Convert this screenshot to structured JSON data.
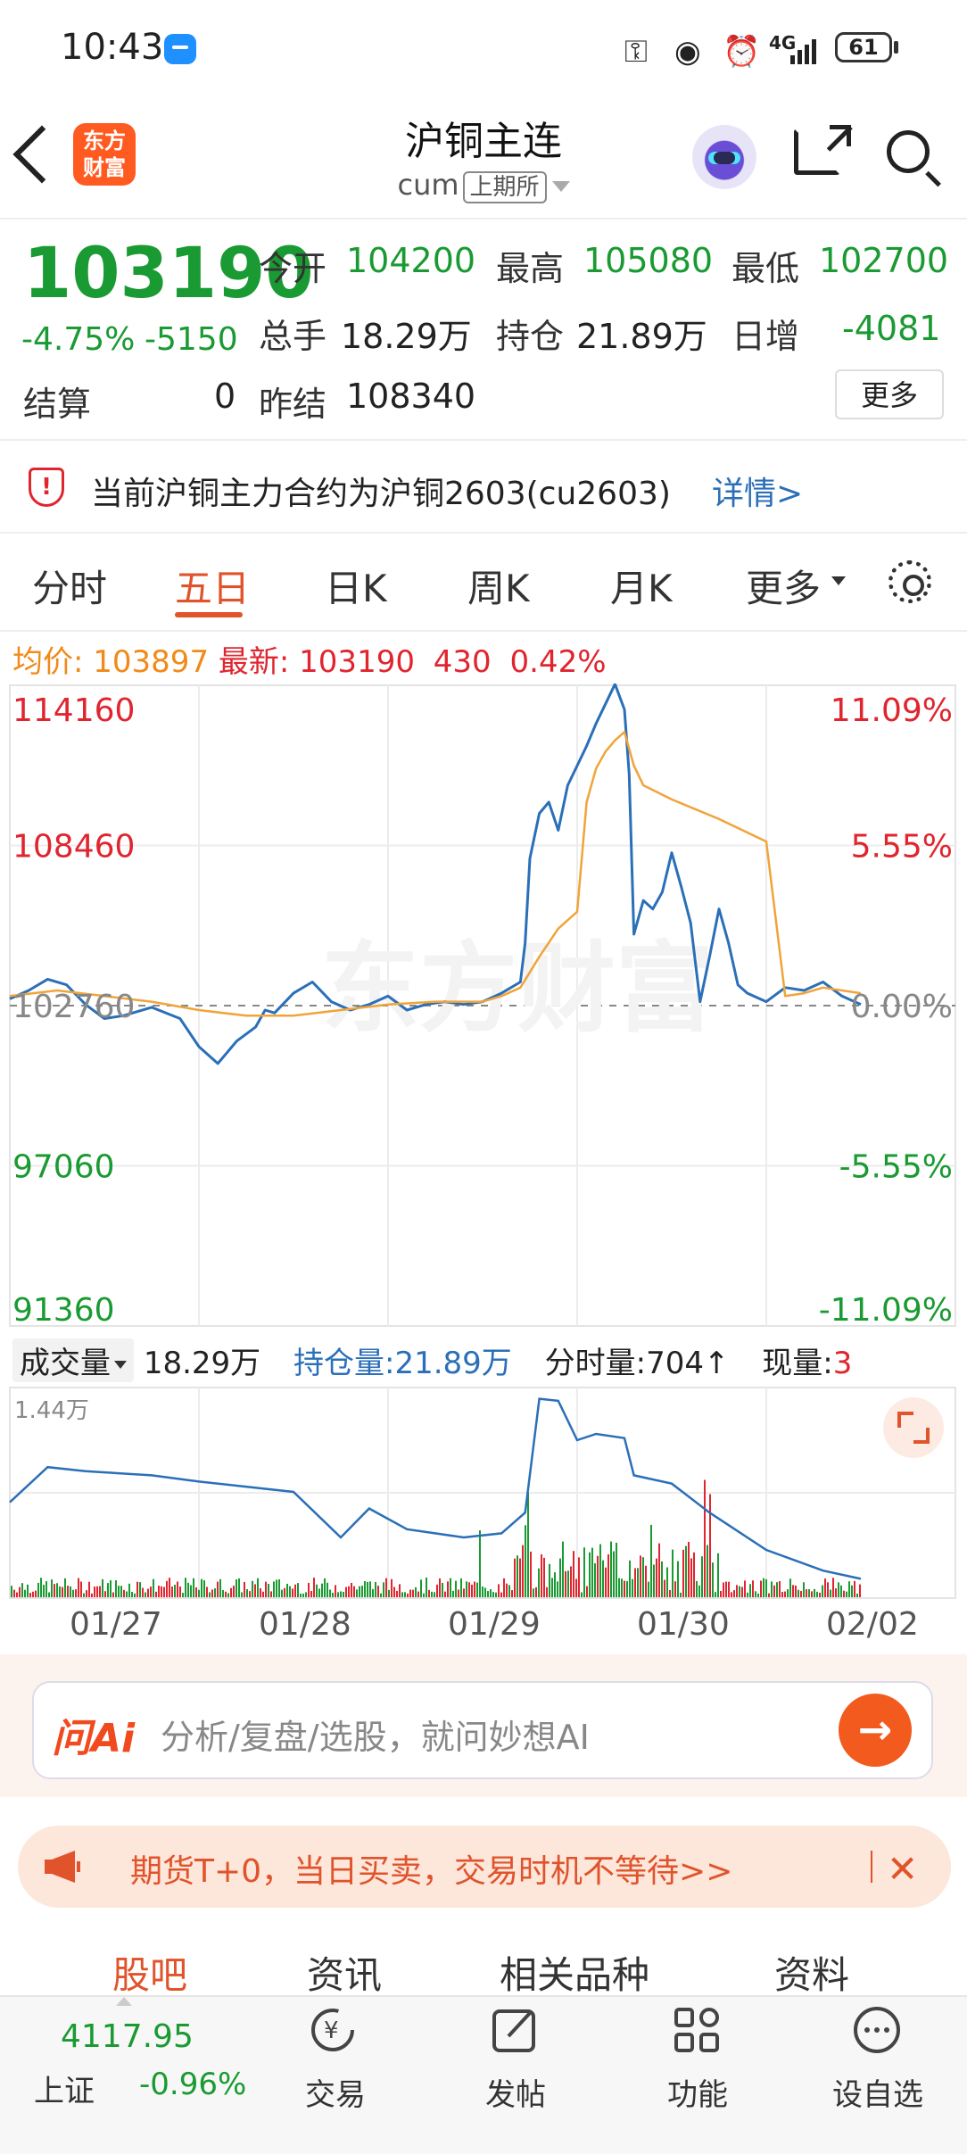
{
  "status_bar": {
    "time": "10:43",
    "signal_label": "4G",
    "battery": "61",
    "icons": [
      "message-icon",
      "key-icon",
      "eye-icon",
      "alarm-icon",
      "signal-icon",
      "battery-icon"
    ]
  },
  "header": {
    "brand": "东方财富",
    "title": "沪铜主连",
    "code": "cum",
    "exchange": "上期所"
  },
  "quote": {
    "last": "103190",
    "change_pct": "-4.75%",
    "change_abs": "-5150",
    "open_label": "今开",
    "open": "104200",
    "high_label": "最高",
    "high": "105080",
    "low_label": "最低",
    "low": "102700",
    "volume_label": "总手",
    "volume": "18.29万",
    "oi_label": "持仓",
    "oi": "21.89万",
    "daily_inc_label": "日增",
    "daily_inc": "-4081",
    "settle_label": "结算",
    "settle": "0",
    "prev_settle_label": "昨结",
    "prev_settle": "108340",
    "more_label": "更多"
  },
  "notice": {
    "text": "当前沪铜主力合约为沪铜2603(cu2603)",
    "link": "详情>"
  },
  "tabs": [
    "分时",
    "五日",
    "日K",
    "周K",
    "月K",
    "更多"
  ],
  "active_tab": 1,
  "info": {
    "avg_label": "均价:",
    "avg": "103897",
    "latest_label": "最新:",
    "latest": "103190",
    "latest_diff": "430",
    "latest_pct": "0.42%"
  },
  "chart_data": {
    "type": "line",
    "y_left_ticks": [
      "114160",
      "108460",
      "102760",
      "97060",
      "91360"
    ],
    "y_right_ticks": [
      "11.09%",
      "5.55%",
      "0.00%",
      "-5.55%",
      "-11.09%"
    ],
    "ylim": [
      91360,
      114160
    ],
    "baseline": 102760,
    "x_categories": [
      "01/27",
      "01/28",
      "01/29",
      "01/30",
      "02/02"
    ],
    "series": [
      {
        "color": "#2b6fb8",
        "x": [
          0,
          0.02,
          0.04,
          0.06,
          0.08,
          0.1,
          0.12,
          0.15,
          0.18,
          0.2,
          0.22,
          0.24,
          0.26,
          0.27,
          0.28,
          0.3,
          0.32,
          0.34,
          0.36,
          0.38,
          0.4,
          0.42,
          0.44,
          0.46,
          0.48,
          0.5,
          0.52,
          0.54,
          0.545,
          0.55,
          0.56,
          0.57,
          0.58,
          0.59,
          0.6,
          0.61,
          0.62,
          0.63,
          0.64,
          0.65,
          0.655,
          0.66,
          0.67,
          0.68,
          0.69,
          0.7,
          0.71,
          0.72,
          0.73,
          0.74,
          0.75,
          0.76,
          0.77,
          0.78,
          0.8,
          0.82,
          0.84,
          0.86,
          0.88,
          0.9
        ],
        "y": [
          103000,
          103300,
          103700,
          103500,
          102800,
          102300,
          102400,
          102700,
          102300,
          101300,
          100700,
          101500,
          102000,
          102600,
          102500,
          103200,
          103600,
          102900,
          102600,
          102800,
          103100,
          102600,
          102800,
          102900,
          102800,
          102900,
          103200,
          103600,
          105000,
          108000,
          109600,
          110000,
          109000,
          110600,
          111300,
          112000,
          112800,
          113500,
          114200,
          113300,
          111000,
          105300,
          106500,
          106200,
          106800,
          108200,
          107000,
          105700,
          102900,
          104500,
          106200,
          105000,
          103500,
          103200,
          102900,
          103400,
          103300,
          103600,
          103100,
          102800
        ]
      },
      {
        "color": "#f0a43a",
        "x": [
          0,
          0.05,
          0.1,
          0.15,
          0.2,
          0.25,
          0.3,
          0.35,
          0.4,
          0.45,
          0.5,
          0.52,
          0.54,
          0.56,
          0.58,
          0.6,
          0.61,
          0.62,
          0.63,
          0.64,
          0.65,
          0.66,
          0.67,
          0.7,
          0.75,
          0.8,
          0.82,
          0.84,
          0.86,
          0.88,
          0.9
        ],
        "y": [
          103100,
          103300,
          103100,
          102900,
          102600,
          102400,
          102400,
          102600,
          102800,
          102900,
          102900,
          103100,
          103400,
          104500,
          105500,
          106100,
          110000,
          111200,
          111800,
          112200,
          112500,
          111300,
          110600,
          110100,
          109400,
          108600,
          103100,
          103200,
          103400,
          103300,
          103200
        ]
      }
    ]
  },
  "volume_bar": {
    "selector": "成交量",
    "volume": "18.29万",
    "oi_label": "持仓量:",
    "oi": "21.89万",
    "tick_label": "分时量:",
    "tick": "704↑",
    "now_label": "现量:",
    "now": "3",
    "max_label": "1.44万"
  },
  "ai": {
    "logo": "问Ai",
    "placeholder": "分析/复盘/选股，就问妙想AI"
  },
  "promo": {
    "text": "期货T+0，当日买卖，交易时机不等待>>"
  },
  "bottom_tabs": [
    "股吧",
    "资讯",
    "相关品种",
    "资料"
  ],
  "bottom_nav": {
    "index_value": "4117.95",
    "index_name": "上证",
    "index_change": "-0.96%",
    "items": [
      {
        "label": "交易",
        "icon": "yuan-exchange-icon"
      },
      {
        "label": "发帖",
        "icon": "edit-icon"
      },
      {
        "label": "功能",
        "icon": "grid-icon"
      },
      {
        "label": "设自选",
        "icon": "more-circle-icon"
      }
    ]
  }
}
